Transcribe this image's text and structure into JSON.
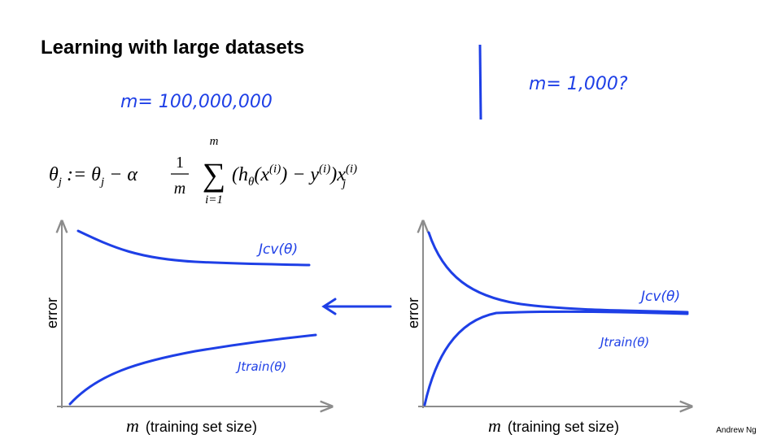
{
  "header": {
    "title": "Learning with large datasets"
  },
  "notes": {
    "left": "m= 100,000,000",
    "right": "m= 1,000?"
  },
  "formula": {
    "lhs": [
      "θ",
      "j",
      " := θ",
      "j",
      " − α"
    ],
    "numerator": "1",
    "denominator": "m",
    "sum": "∑",
    "sum_upper": "m",
    "sum_lower": "i=1",
    "body": [
      "(h",
      "θ",
      "(x",
      "(i)",
      ") − y",
      "(i)",
      ")x",
      "(i)",
      "j"
    ]
  },
  "plots": [
    {
      "y_label": "error",
      "x_var": "m",
      "x_label": "(training set size)",
      "curves": [
        "Jcv(θ)",
        "Jtrain(θ)"
      ]
    },
    {
      "y_label": "error",
      "x_var": "m",
      "x_label": "(training set size)",
      "curves": [
        "Jcv(θ)",
        "Jtrain(θ)"
      ]
    }
  ],
  "footer": "Andrew Ng"
}
